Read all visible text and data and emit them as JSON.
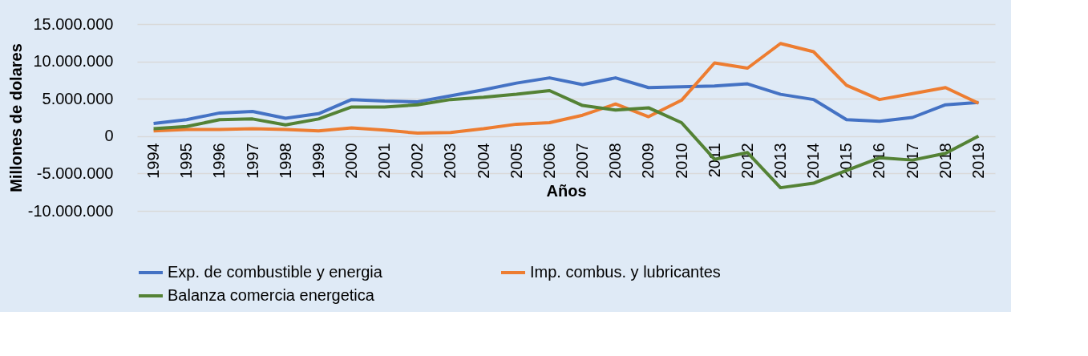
{
  "chart_data": {
    "type": "line",
    "xlabel": "Años",
    "ylabel": "Millones de dolares",
    "categories": [
      "1994",
      "1995",
      "1996",
      "1997",
      "1998",
      "1999",
      "2000",
      "2001",
      "2002",
      "2003",
      "2004",
      "2005",
      "2006",
      "2007",
      "2008",
      "2009",
      "2010",
      "2011",
      "2012",
      "2013",
      "2014",
      "2015",
      "2016",
      "2017",
      "2018",
      "2019"
    ],
    "series": [
      {
        "name": "Exp. de combustible y energia",
        "color": "#4472c4",
        "values": [
          1700000,
          2200000,
          3100000,
          3300000,
          2400000,
          3000000,
          4900000,
          4700000,
          4600000,
          5400000,
          6200000,
          7100000,
          7800000,
          6900000,
          7800000,
          6500000,
          6600000,
          6700000,
          7000000,
          5600000,
          4900000,
          2200000,
          2000000,
          2500000,
          4200000,
          4500000
        ]
      },
      {
        "name": "Imp. combus. y lubricantes",
        "color": "#ed7d31",
        "values": [
          700000,
          900000,
          900000,
          1000000,
          900000,
          700000,
          1100000,
          800000,
          400000,
          500000,
          1000000,
          1600000,
          1800000,
          2800000,
          4300000,
          2600000,
          4800000,
          9800000,
          9100000,
          12400000,
          11300000,
          6800000,
          4900000,
          5700000,
          6500000,
          4400000
        ]
      },
      {
        "name": "Balanza comercia energetica",
        "color": "#548235",
        "values": [
          1000000,
          1300000,
          2200000,
          2300000,
          1500000,
          2300000,
          3900000,
          3900000,
          4200000,
          4900000,
          5200000,
          5600000,
          6100000,
          4100000,
          3500000,
          3800000,
          1800000,
          -3100000,
          -2200000,
          -6900000,
          -6300000,
          -4600000,
          -2900000,
          -3200000,
          -2300000,
          0
        ]
      }
    ],
    "ylim": [
      -10000000,
      15000000
    ],
    "yticks": [
      {
        "value": -10000000,
        "label": "-10.000.000"
      },
      {
        "value": -5000000,
        "label": "-5.000.000"
      },
      {
        "value": 0,
        "label": "0"
      },
      {
        "value": 5000000,
        "label": "5.000.000"
      },
      {
        "value": 10000000,
        "label": "10.000.000"
      },
      {
        "value": 15000000,
        "label": "15.000.000"
      }
    ],
    "grid": "y",
    "legend": "bottom",
    "marker": "none",
    "line_style": "solid"
  }
}
